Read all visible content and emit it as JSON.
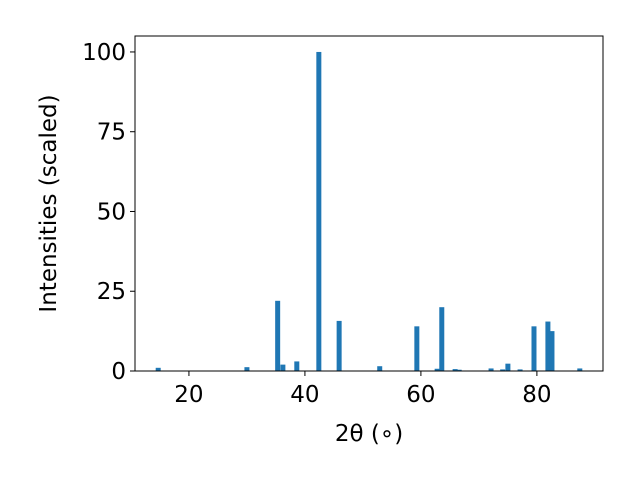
{
  "chart_data": {
    "type": "bar",
    "xlabel": "2θ (∘)",
    "ylabel": "Intensities (scaled)",
    "color": "#1f77b4",
    "x": [
      14.7,
      30.0,
      35.3,
      36.2,
      38.6,
      42.4,
      45.9,
      52.9,
      59.3,
      62.8,
      63.6,
      65.9,
      66.6,
      72.1,
      74.1,
      75.0,
      77.1,
      79.5,
      81.9,
      82.6,
      87.4
    ],
    "values": [
      1,
      1.2,
      22,
      2,
      3,
      100,
      15.7,
      1.5,
      14,
      0.7,
      20,
      0.6,
      0.4,
      0.8,
      0.5,
      2.3,
      0.5,
      14,
      15.5,
      12.5,
      0.8
    ],
    "xlim": [
      10.7,
      91.4
    ],
    "ylim": [
      0,
      105
    ],
    "xticks": [
      20,
      40,
      60,
      80
    ],
    "yticks": [
      0,
      25,
      50,
      75,
      100
    ]
  }
}
